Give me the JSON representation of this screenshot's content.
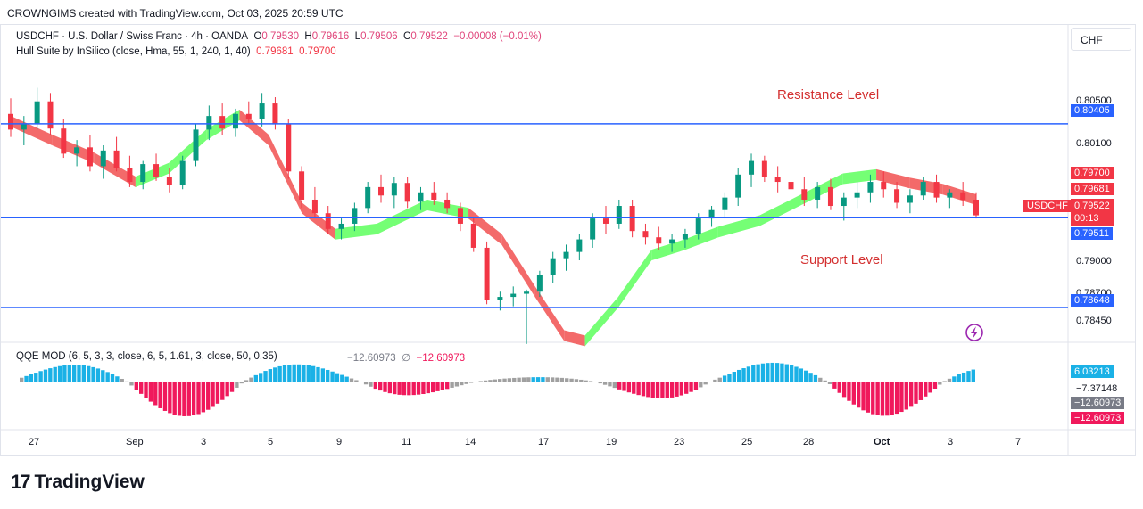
{
  "header": {
    "attribution": "CROWNGIMS created with TradingView.com, Oct 03, 2025 20:59 UTC"
  },
  "symbol_legend": {
    "title": "USDCHF · U.S. Dollar / Swiss Franc · 4h · OANDA",
    "o_label": "O",
    "o_value": "0.79530",
    "h_label": "H",
    "h_value": "0.79616",
    "l_label": "L",
    "l_value": "0.79506",
    "c_label": "C",
    "c_value": "0.79522",
    "change": "−0.00008 (−0.01%)"
  },
  "hull_legend": {
    "title": "Hull Suite by InSilico (close, Hma, 55, 1, 240, 1, 40)",
    "value1": "0.79681",
    "value2": "0.79700"
  },
  "qqe_legend": {
    "title": "QQE MOD (6, 5, 3, 3, close, 6, 5, 1.61, 3, close, 50, 0.35)",
    "value1": "−12.60973",
    "empty_symbol": "∅",
    "value2": "−12.60973"
  },
  "currency_button": "CHF",
  "annotations": {
    "resistance": "Resistance Level",
    "support": "Support Level"
  },
  "price_axis": {
    "ticks": [
      "0.80500",
      "0.80100",
      "0.79000",
      "0.78700",
      "0.78450"
    ]
  },
  "price_tags": {
    "resistance_line": "0.80405",
    "hull_top": "0.79700",
    "hull_bottom": "0.79681",
    "symbol": "USDCHF",
    "last_price": "0.79522",
    "countdown": "00:13",
    "mid_line": "0.79511",
    "support_line": "0.78648"
  },
  "qqe_axis": {
    "ticks": [
      "6.03213",
      "−7.37148",
      "−12.60973",
      "−12.60973"
    ]
  },
  "time_axis": {
    "labels": [
      "27",
      "Sep",
      "3",
      "5",
      "9",
      "11",
      "14",
      "17",
      "19",
      "23",
      "25",
      "28",
      "Oct",
      "3",
      "7"
    ]
  },
  "brand": {
    "mark": "17",
    "name": "TradingView"
  },
  "colors": {
    "up": "#089981",
    "down": "#f23645",
    "hull_up": "#66ff66",
    "hull_down": "#f25a5a",
    "level_line": "#2962ff",
    "qqe_up": "#1ab1e6",
    "qqe_down": "#f0195c",
    "qqe_neutral": "#a0a0a0"
  },
  "chart_data": {
    "type": "candlestick",
    "symbol": "USDCHF",
    "timeframe": "4h",
    "ylim": [
      0.7835,
      0.8095
    ],
    "horizontal_levels": [
      {
        "name": "Resistance Level",
        "value": 0.80405
      },
      {
        "name": "mid",
        "value": 0.79511
      },
      {
        "name": "Support Level",
        "value": 0.78648
      }
    ],
    "hull_path": [
      [
        0,
        0.8043
      ],
      [
        10,
        0.8025
      ],
      [
        20,
        0.8008
      ],
      [
        30,
        0.7985
      ],
      [
        38,
        0.7998
      ],
      [
        47,
        0.803
      ],
      [
        55,
        0.8049
      ],
      [
        62,
        0.8025
      ],
      [
        70,
        0.796
      ],
      [
        78,
        0.7935
      ],
      [
        88,
        0.794
      ],
      [
        100,
        0.7963
      ],
      [
        110,
        0.7955
      ],
      [
        118,
        0.793
      ],
      [
        126,
        0.788
      ],
      [
        133,
        0.7838
      ],
      [
        138,
        0.7833
      ],
      [
        146,
        0.787
      ],
      [
        154,
        0.7915
      ],
      [
        162,
        0.7925
      ],
      [
        170,
        0.7937
      ],
      [
        180,
        0.7948
      ],
      [
        190,
        0.7968
      ],
      [
        200,
        0.7988
      ],
      [
        208,
        0.7992
      ],
      [
        216,
        0.7984
      ],
      [
        224,
        0.7978
      ],
      [
        232,
        0.7968
      ]
    ],
    "hull_down_segments": [
      [
        0,
        10,
        20,
        30
      ],
      [
        55,
        62,
        70,
        78
      ],
      [
        110,
        118,
        126,
        133,
        138
      ],
      [
        208,
        216,
        224,
        232
      ]
    ],
    "candles_ohlc": [
      [
        0.805,
        0.8065,
        0.8028,
        0.8035
      ],
      [
        0.8035,
        0.8048,
        0.802,
        0.804
      ],
      [
        0.804,
        0.8075,
        0.8035,
        0.8062
      ],
      [
        0.8062,
        0.807,
        0.803,
        0.8036
      ],
      [
        0.8036,
        0.8045,
        0.8008,
        0.8012
      ],
      [
        0.8012,
        0.8025,
        0.8,
        0.8018
      ],
      [
        0.8018,
        0.803,
        0.7995,
        0.8
      ],
      [
        0.8,
        0.802,
        0.7988,
        0.8015
      ],
      [
        0.8015,
        0.8028,
        0.7995,
        0.7998
      ],
      [
        0.7998,
        0.801,
        0.798,
        0.7985
      ],
      [
        0.7985,
        0.8005,
        0.7978,
        0.8002
      ],
      [
        0.8002,
        0.8012,
        0.7986,
        0.799
      ],
      [
        0.799,
        0.7998,
        0.7975,
        0.7982
      ],
      [
        0.7982,
        0.801,
        0.7978,
        0.8005
      ],
      [
        0.8005,
        0.804,
        0.8,
        0.8035
      ],
      [
        0.8035,
        0.8058,
        0.8025,
        0.8048
      ],
      [
        0.8048,
        0.806,
        0.803,
        0.8036
      ],
      [
        0.8036,
        0.8055,
        0.8028,
        0.805
      ],
      [
        0.805,
        0.8062,
        0.804,
        0.8045
      ],
      [
        0.8045,
        0.807,
        0.8038,
        0.806
      ],
      [
        0.806,
        0.8066,
        0.8035,
        0.804
      ],
      [
        0.804,
        0.8045,
        0.7988,
        0.7995
      ],
      [
        0.7995,
        0.8,
        0.796,
        0.7968
      ],
      [
        0.7968,
        0.798,
        0.795,
        0.7955
      ],
      [
        0.7955,
        0.7962,
        0.7935,
        0.794
      ],
      [
        0.794,
        0.795,
        0.793,
        0.7945
      ],
      [
        0.7945,
        0.7965,
        0.7938,
        0.796
      ],
      [
        0.796,
        0.7985,
        0.7955,
        0.798
      ],
      [
        0.798,
        0.7992,
        0.7965,
        0.7972
      ],
      [
        0.7972,
        0.799,
        0.796,
        0.7984
      ],
      [
        0.7984,
        0.799,
        0.796,
        0.7966
      ],
      [
        0.7966,
        0.798,
        0.7958,
        0.7975
      ],
      [
        0.7975,
        0.7985,
        0.7963,
        0.7968
      ],
      [
        0.7968,
        0.7975,
        0.7955,
        0.796
      ],
      [
        0.796,
        0.7965,
        0.7938,
        0.7945
      ],
      [
        0.7945,
        0.795,
        0.7918,
        0.7922
      ],
      [
        0.7922,
        0.7928,
        0.7868,
        0.7872
      ],
      [
        0.7872,
        0.788,
        0.7862,
        0.7875
      ],
      [
        0.7875,
        0.7885,
        0.7866,
        0.7878
      ],
      [
        0.7878,
        0.7882,
        0.783,
        0.788
      ],
      [
        0.788,
        0.79,
        0.7875,
        0.7896
      ],
      [
        0.7896,
        0.7918,
        0.7888,
        0.7912
      ],
      [
        0.7912,
        0.7925,
        0.79,
        0.7918
      ],
      [
        0.7918,
        0.7935,
        0.791,
        0.793
      ],
      [
        0.793,
        0.7955,
        0.7922,
        0.795
      ],
      [
        0.795,
        0.7962,
        0.7935,
        0.7945
      ],
      [
        0.7945,
        0.7968,
        0.794,
        0.7962
      ],
      [
        0.7962,
        0.7968,
        0.7932,
        0.7938
      ],
      [
        0.7938,
        0.7945,
        0.7925,
        0.7932
      ],
      [
        0.7932,
        0.7942,
        0.792,
        0.7926
      ],
      [
        0.7926,
        0.7935,
        0.7918,
        0.793
      ],
      [
        0.793,
        0.794,
        0.7922,
        0.7935
      ],
      [
        0.7935,
        0.7955,
        0.793,
        0.795
      ],
      [
        0.795,
        0.7962,
        0.7942,
        0.7958
      ],
      [
        0.7958,
        0.7975,
        0.795,
        0.797
      ],
      [
        0.797,
        0.7998,
        0.7962,
        0.7992
      ],
      [
        0.7992,
        0.8012,
        0.798,
        0.8005
      ],
      [
        0.8005,
        0.801,
        0.7985,
        0.799
      ],
      [
        0.799,
        0.8,
        0.7975,
        0.7985
      ],
      [
        0.7985,
        0.7998,
        0.797,
        0.7978
      ],
      [
        0.7978,
        0.799,
        0.7962,
        0.7968
      ],
      [
        0.7968,
        0.7985,
        0.796,
        0.798
      ],
      [
        0.798,
        0.7988,
        0.7958,
        0.7962
      ],
      [
        0.7962,
        0.7975,
        0.7948,
        0.797
      ],
      [
        0.797,
        0.7985,
        0.796,
        0.7975
      ],
      [
        0.7975,
        0.7992,
        0.7965,
        0.7985
      ],
      [
        0.7985,
        0.7995,
        0.797,
        0.7978
      ],
      [
        0.7978,
        0.7985,
        0.796,
        0.7965
      ],
      [
        0.7965,
        0.7978,
        0.7955,
        0.7972
      ],
      [
        0.7972,
        0.799,
        0.7968,
        0.7985
      ],
      [
        0.7985,
        0.7992,
        0.7965,
        0.797
      ],
      [
        0.797,
        0.7978,
        0.796,
        0.7975
      ],
      [
        0.7975,
        0.7985,
        0.7962,
        0.7968
      ],
      [
        0.7968,
        0.7975,
        0.795,
        0.7953
      ]
    ]
  }
}
